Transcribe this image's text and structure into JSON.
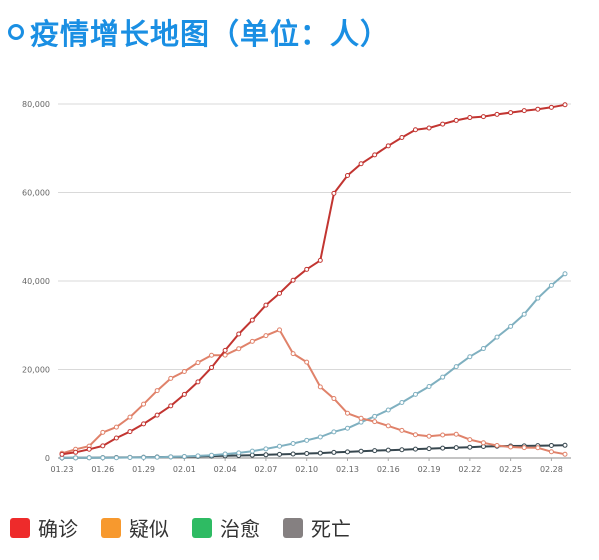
{
  "title": "疫情增长地图（单位：人）",
  "chart_data": {
    "type": "line",
    "x": [
      "01.23",
      "01.24",
      "01.25",
      "01.26",
      "01.27",
      "01.28",
      "01.29",
      "01.30",
      "01.31",
      "02.01",
      "02.02",
      "02.03",
      "02.04",
      "02.05",
      "02.06",
      "02.07",
      "02.08",
      "02.09",
      "02.10",
      "02.11",
      "02.12",
      "02.13",
      "02.14",
      "02.15",
      "02.16",
      "02.17",
      "02.18",
      "02.19",
      "02.20",
      "02.21",
      "02.22",
      "02.23",
      "02.24",
      "02.25",
      "02.26",
      "02.27",
      "02.28",
      "02.29"
    ],
    "xticks": [
      "01.23",
      "01.26",
      "01.29",
      "02.01",
      "02.04",
      "02.07",
      "02.10",
      "02.13",
      "02.16",
      "02.19",
      "02.22",
      "02.25",
      "02.28"
    ],
    "yticks": [
      "0",
      "20,000",
      "40,000",
      "60,000",
      "80,000"
    ],
    "ylim": [
      0,
      80000
    ],
    "grid": true,
    "legend_position": "bottom-left",
    "series": [
      {
        "name": "确诊",
        "legend_color": "#ee2b2b",
        "line_color": "#c23531",
        "values": [
          830,
          1287,
          1975,
          2744,
          4515,
          5974,
          7711,
          9692,
          11791,
          14380,
          17205,
          20438,
          24324,
          28018,
          31161,
          34546,
          37198,
          40171,
          42638,
          44653,
          59804,
          63851,
          66492,
          68500,
          70548,
          72436,
          74185,
          74576,
          75465,
          76288,
          76936,
          77150,
          77658,
          78064,
          78497,
          78824,
          79251,
          79824
        ]
      },
      {
        "name": "疑似",
        "legend_color": "#f7992e",
        "line_color": "#e0826a",
        "values": [
          1072,
          1965,
          2684,
          5794,
          6973,
          9239,
          12167,
          15238,
          17988,
          19544,
          21558,
          23214,
          23260,
          24702,
          26359,
          27657,
          28942,
          23589,
          21675,
          16067,
          13435,
          10109,
          8969,
          8228,
          7264,
          6242,
          5248,
          4922,
          5206,
          5365,
          4148,
          3434,
          2824,
          2491,
          2358,
          2308,
          1418,
          851
        ]
      },
      {
        "name": "治愈",
        "legend_color": "#2ebb63",
        "line_color": "#7fb0c0",
        "values": [
          34,
          38,
          49,
          51,
          60,
          103,
          124,
          171,
          243,
          328,
          475,
          632,
          892,
          1153,
          1540,
          2050,
          2649,
          3281,
          3996,
          4740,
          5911,
          6723,
          8096,
          9419,
          10844,
          12552,
          14376,
          16155,
          18264,
          20659,
          22888,
          24734,
          27323,
          29745,
          32495,
          36117,
          39002,
          41625
        ]
      },
      {
        "name": "死亡",
        "legend_color": "#858081",
        "line_color": "#37474f",
        "values": [
          25,
          41,
          56,
          80,
          106,
          132,
          170,
          213,
          259,
          304,
          361,
          425,
          490,
          563,
          636,
          722,
          811,
          908,
          1016,
          1113,
          1259,
          1380,
          1523,
          1665,
          1770,
          1868,
          2004,
          2118,
          2236,
          2345,
          2442,
          2592,
          2663,
          2715,
          2744,
          2788,
          2835,
          2870
        ]
      }
    ]
  },
  "legend": [
    {
      "label": "确诊",
      "color": "#ee2b2b"
    },
    {
      "label": "疑似",
      "color": "#f7992e"
    },
    {
      "label": "治愈",
      "color": "#2ebb63"
    },
    {
      "label": "死亡",
      "color": "#858081"
    }
  ]
}
